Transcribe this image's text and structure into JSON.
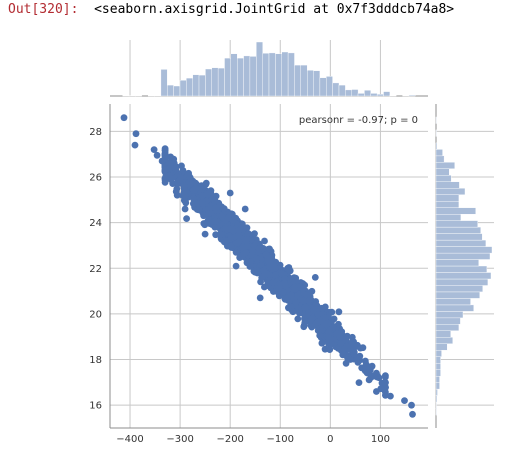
{
  "output_cell": {
    "prompt": "Out[320]:",
    "text": "<seaborn.axisgrid.JointGrid at 0x7f3dddcb74a8>"
  },
  "colors": {
    "points": "#4c72b0",
    "marginal_hist": "#a9bcd8",
    "grid": "#c8c8c8",
    "axis_spine": "#8c8c8c",
    "prompt": "#b22b31"
  },
  "chart_data": {
    "type": "scatter",
    "kind": "jointplot",
    "annotation": "pearsonr = -0.97; p = 0",
    "annotation_position": "top-right",
    "grid": true,
    "x_ticks": [
      -400,
      -300,
      -200,
      -100,
      0,
      100
    ],
    "y_ticks": [
      16,
      18,
      20,
      22,
      24,
      26,
      28
    ],
    "xlim": [
      -440,
      195
    ],
    "ylim": [
      15.0,
      29.2
    ],
    "regression": {
      "intercept": 19.27,
      "slope": -0.0222,
      "residual_sd": 0.35
    },
    "x_distribution": {
      "mean": -140,
      "sd": 95,
      "n": 2000
    },
    "outliers": [
      {
        "x": -412,
        "y": 28.6
      },
      {
        "x": -388,
        "y": 27.9
      },
      {
        "x": -390,
        "y": 27.4
      },
      {
        "x": -352,
        "y": 27.2
      },
      {
        "x": -346,
        "y": 26.95
      },
      {
        "x": -336,
        "y": 26.7
      },
      {
        "x": -320,
        "y": 26.4
      },
      {
        "x": 148,
        "y": 16.2
      },
      {
        "x": 162,
        "y": 16.0
      },
      {
        "x": 164,
        "y": 15.6
      },
      {
        "x": 120,
        "y": 16.4
      },
      {
        "x": 92,
        "y": 16.6
      },
      {
        "x": 110,
        "y": 17.0
      },
      {
        "x": 70,
        "y": 17.7
      },
      {
        "x": 92,
        "y": 17.4
      },
      {
        "x": 40,
        "y": 18.0
      },
      {
        "x": 60,
        "y": 18.5
      },
      {
        "x": -200,
        "y": 25.3
      },
      {
        "x": -290,
        "y": 24.6
      },
      {
        "x": -140,
        "y": 20.7
      },
      {
        "x": -30,
        "y": 21.6
      },
      {
        "x": -50,
        "y": 20.3
      },
      {
        "x": -170,
        "y": 24.6
      },
      {
        "x": -250,
        "y": 23.5
      }
    ]
  }
}
